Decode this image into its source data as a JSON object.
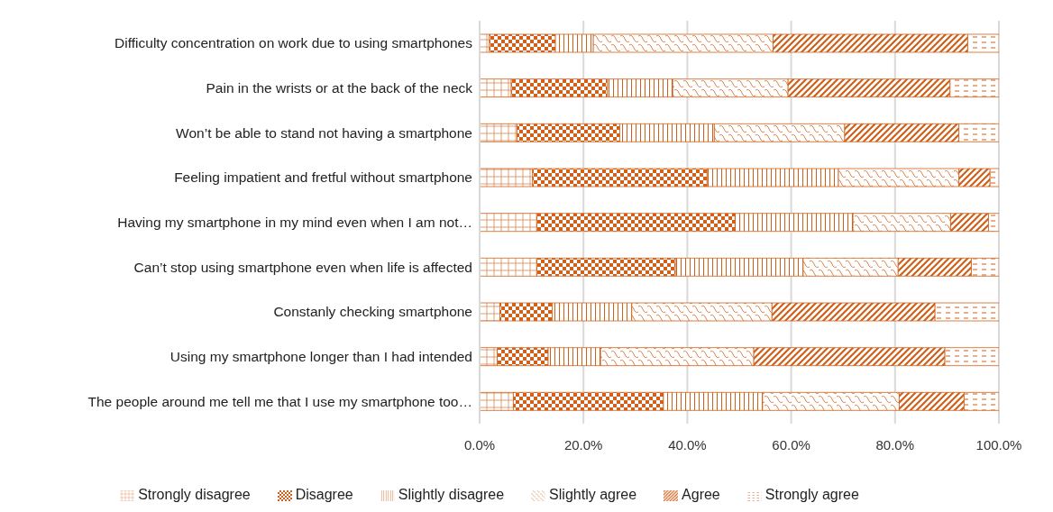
{
  "chart_data": {
    "type": "bar",
    "orientation": "horizontal",
    "stacked": true,
    "categories": [
      "Difficulty concentration on work due to using smartphones",
      "Pain in the wrists or at the back of the neck",
      "Won’t be able to stand not having a smartphone",
      "Feeling impatient and fretful without smartphone",
      "Having  my smartphone in my mind even when I am not…",
      "Can’t stop using smartphone even when life is affected",
      "Constanly checking smartphone",
      "Using my smartphone longer than I had intended",
      "The people around me tell me that I use my smartphone too…"
    ],
    "series": [
      {
        "name": "Strongly disagree",
        "color": "#d0601a",
        "values": [
          1.9,
          6.1,
          7.2,
          10.2,
          11.0,
          11.0,
          3.9,
          3.4,
          6.5
        ]
      },
      {
        "name": "Disagree",
        "color": "#d0601a",
        "values": [
          12.7,
          18.5,
          19.8,
          33.6,
          38.2,
          26.7,
          10.1,
          9.8,
          28.9
        ]
      },
      {
        "name": "Slightly disagree",
        "color": "#d0601a",
        "values": [
          7.3,
          12.6,
          18.2,
          25.3,
          22.7,
          24.6,
          15.3,
          10.1,
          19.1
        ]
      },
      {
        "name": "Slightly agree",
        "color": "#d0601a",
        "values": [
          34.6,
          22.2,
          25.1,
          23.2,
          18.8,
          18.3,
          27.0,
          29.5,
          26.3
        ]
      },
      {
        "name": "Agree",
        "color": "#d0601a",
        "values": [
          37.5,
          31.2,
          22.0,
          6.0,
          7.3,
          14.1,
          31.4,
          36.8,
          12.5
        ]
      },
      {
        "name": "Strongly agree",
        "color": "#d0601a",
        "values": [
          6.0,
          9.4,
          7.7,
          1.7,
          2.0,
          5.3,
          12.3,
          10.4,
          6.7
        ]
      }
    ],
    "xlim": [
      0,
      100
    ],
    "xticks": [
      {
        "value": 0,
        "label": "0.0%"
      },
      {
        "value": 20,
        "label": "20.0%"
      },
      {
        "value": 40,
        "label": "40.0%"
      },
      {
        "value": 60,
        "label": "60.0%"
      },
      {
        "value": 80,
        "label": "80.0%"
      },
      {
        "value": 100,
        "label": "100.0%"
      }
    ],
    "grid": "x",
    "legend": "bottom"
  }
}
